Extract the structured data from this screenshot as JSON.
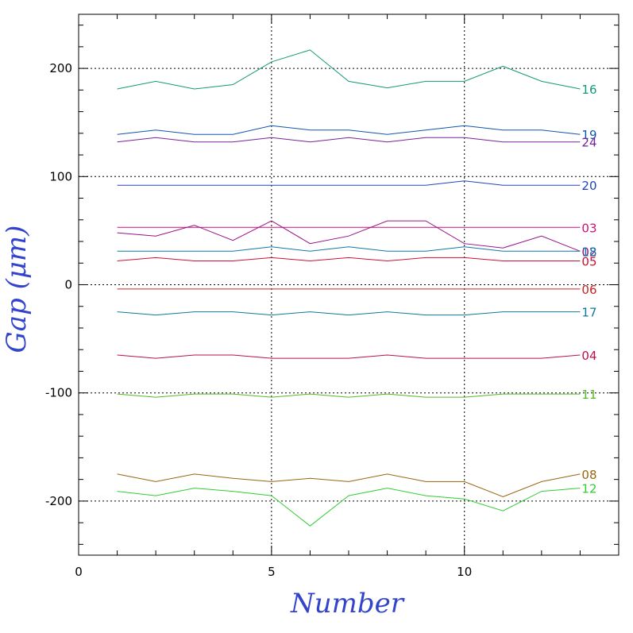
{
  "chart_data": {
    "type": "line",
    "xlabel": "Number",
    "ylabel": "Gap (μm)",
    "xlim": [
      0,
      14
    ],
    "ylim": [
      -250,
      250
    ],
    "x_ticks": [
      "0",
      "5",
      "10"
    ],
    "y_ticks": [
      "200",
      "100",
      "0",
      "-100",
      "-200"
    ],
    "grid": "dotted at x=5,10 and y=-200,-100,0,100,200",
    "x": [
      1,
      2,
      3,
      4,
      5,
      6,
      7,
      8,
      9,
      10,
      11,
      12,
      13
    ],
    "series": [
      {
        "name": "16",
        "color": "#119977",
        "values": [
          181,
          188,
          181,
          185,
          206,
          217,
          188,
          182,
          188,
          188,
          202,
          188,
          181
        ]
      },
      {
        "name": "19",
        "color": "#1155aa",
        "values": [
          139,
          143,
          139,
          139,
          147,
          143,
          143,
          139,
          143,
          147,
          143,
          143,
          139
        ]
      },
      {
        "name": "24",
        "color": "#772299",
        "values": [
          132,
          136,
          132,
          132,
          136,
          132,
          136,
          132,
          136,
          136,
          132,
          132,
          132
        ]
      },
      {
        "name": "20",
        "color": "#2244bb",
        "values": [
          92,
          92,
          92,
          92,
          92,
          92,
          92,
          92,
          92,
          96,
          92,
          92,
          92
        ]
      },
      {
        "name": "03",
        "color": "#cc1177",
        "values": [
          53,
          53,
          53,
          53,
          53,
          53,
          53,
          53,
          53,
          53,
          53,
          53,
          53
        ]
      },
      {
        "name": "02",
        "color": "#991188",
        "values": [
          48,
          45,
          55,
          41,
          59,
          38,
          45,
          59,
          59,
          38,
          34,
          45,
          31
        ]
      },
      {
        "name": "18",
        "color": "#1177aa",
        "values": [
          31,
          31,
          31,
          31,
          35,
          31,
          35,
          31,
          31,
          35,
          31,
          31,
          31
        ]
      },
      {
        "name": "05",
        "color": "#cc1133",
        "values": [
          22,
          25,
          22,
          22,
          25,
          22,
          25,
          22,
          25,
          25,
          22,
          22,
          22
        ]
      },
      {
        "name": "06",
        "color": "#cc2222",
        "values": [
          -4,
          -4,
          -4,
          -4,
          -4,
          -4,
          -4,
          -4,
          -4,
          -4,
          -4,
          -4,
          -4
        ]
      },
      {
        "name": "17",
        "color": "#117799",
        "values": [
          -25,
          -28,
          -25,
          -25,
          -28,
          -25,
          -28,
          -25,
          -28,
          -28,
          -25,
          -25,
          -25
        ]
      },
      {
        "name": "04",
        "color": "#bb1144",
        "values": [
          -65,
          -68,
          -65,
          -65,
          -68,
          -68,
          -68,
          -65,
          -68,
          -68,
          -68,
          -68,
          -65
        ]
      },
      {
        "name": "11",
        "color": "#55bb22",
        "values": [
          -101,
          -104,
          -101,
          -101,
          -104,
          -101,
          -104,
          -101,
          -104,
          -104,
          -101,
          -101,
          -101
        ]
      },
      {
        "name": "08",
        "color": "#996611",
        "values": [
          -175,
          -182,
          -175,
          -179,
          -182,
          -179,
          -182,
          -175,
          -182,
          -182,
          -196,
          -182,
          -175
        ]
      },
      {
        "name": "12",
        "color": "#33cc33",
        "values": [
          -191,
          -195,
          -188,
          -191,
          -195,
          -223,
          -195,
          -188,
          -195,
          -198,
          -209,
          -191,
          -188
        ]
      }
    ]
  }
}
